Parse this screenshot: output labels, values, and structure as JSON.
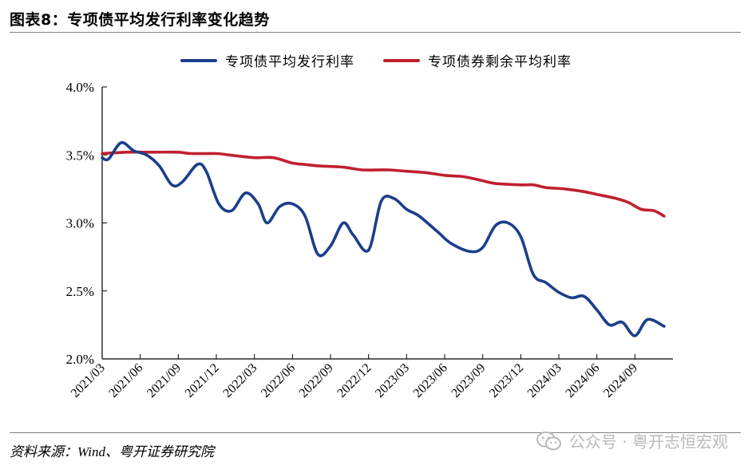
{
  "header": {
    "title": "图表8：专项债平均发行利率变化趋势"
  },
  "footer": {
    "source": "资料来源：Wind、粤开证券研究院",
    "watermark": "公众号 · 粤开志恒宏观"
  },
  "colors": {
    "issue_rate": "#1b3f8b",
    "remaining_rate": "#c0202e",
    "axis": "#000000"
  },
  "chart_data": {
    "type": "line",
    "title": "专项债平均发行利率变化趋势",
    "xlabel": "",
    "ylabel": "",
    "ylim": [
      2.0,
      4.0
    ],
    "y_ticks": [
      "2.0%",
      "2.5%",
      "3.0%",
      "3.5%",
      "4.0%"
    ],
    "y_tick_values": [
      2.0,
      2.5,
      3.0,
      3.5,
      4.0
    ],
    "x_tick_labels": [
      "2021/03",
      "2021/06",
      "2021/09",
      "2021/12",
      "2022/03",
      "2022/06",
      "2022/09",
      "2022/12",
      "2023/03",
      "2023/06",
      "2023/09",
      "2023/12",
      "2024/03",
      "2024/06",
      "2024/09"
    ],
    "x_tick_index": [
      0,
      3,
      6,
      9,
      12,
      15,
      18,
      21,
      24,
      27,
      30,
      33,
      36,
      39,
      42
    ],
    "x_max_index": 45,
    "legend_position": "top-center",
    "series": [
      {
        "name": "专项债平均发行利率",
        "color": "#1b3f8b",
        "points": [
          [
            0,
            3.48
          ],
          [
            0.5,
            3.47
          ],
          [
            1.5,
            3.59
          ],
          [
            2.5,
            3.53
          ],
          [
            3.5,
            3.5
          ],
          [
            4.5,
            3.42
          ],
          [
            5.5,
            3.28
          ],
          [
            6.3,
            3.3
          ],
          [
            7.5,
            3.43
          ],
          [
            8.2,
            3.38
          ],
          [
            9.2,
            3.14
          ],
          [
            10.2,
            3.09
          ],
          [
            11.3,
            3.22
          ],
          [
            12.3,
            3.14
          ],
          [
            13.0,
            3.0
          ],
          [
            14.0,
            3.12
          ],
          [
            15.0,
            3.14
          ],
          [
            16.0,
            3.05
          ],
          [
            17.0,
            2.77
          ],
          [
            18.0,
            2.83
          ],
          [
            19.0,
            3.0
          ],
          [
            19.8,
            2.91
          ],
          [
            21.0,
            2.8
          ],
          [
            22.0,
            3.16
          ],
          [
            23.0,
            3.18
          ],
          [
            24.0,
            3.1
          ],
          [
            25.0,
            3.05
          ],
          [
            26.5,
            2.93
          ],
          [
            27.5,
            2.85
          ],
          [
            29.0,
            2.79
          ],
          [
            30.0,
            2.82
          ],
          [
            31.0,
            2.98
          ],
          [
            32.0,
            3.0
          ],
          [
            33.0,
            2.9
          ],
          [
            34.0,
            2.62
          ],
          [
            35.0,
            2.56
          ],
          [
            36.0,
            2.49
          ],
          [
            37.0,
            2.45
          ],
          [
            38.0,
            2.46
          ],
          [
            39.0,
            2.36
          ],
          [
            40.0,
            2.25
          ],
          [
            41.0,
            2.27
          ],
          [
            42.0,
            2.17
          ],
          [
            43.0,
            2.29
          ],
          [
            44.3,
            2.24
          ]
        ]
      },
      {
        "name": "专项债券剩余平均利率",
        "color": "#c0202e",
        "points": [
          [
            0,
            3.51
          ],
          [
            2,
            3.52
          ],
          [
            4,
            3.52
          ],
          [
            6,
            3.52
          ],
          [
            7,
            3.51
          ],
          [
            9,
            3.51
          ],
          [
            10,
            3.5
          ],
          [
            12,
            3.48
          ],
          [
            13.5,
            3.48
          ],
          [
            15,
            3.44
          ],
          [
            16,
            3.43
          ],
          [
            17,
            3.42
          ],
          [
            19,
            3.41
          ],
          [
            20.5,
            3.39
          ],
          [
            22.5,
            3.39
          ],
          [
            24,
            3.38
          ],
          [
            25.5,
            3.37
          ],
          [
            27,
            3.35
          ],
          [
            28.5,
            3.34
          ],
          [
            30,
            3.31
          ],
          [
            31,
            3.29
          ],
          [
            33,
            3.28
          ],
          [
            34,
            3.28
          ],
          [
            35,
            3.26
          ],
          [
            36.5,
            3.25
          ],
          [
            38,
            3.23
          ],
          [
            39,
            3.21
          ],
          [
            40.5,
            3.18
          ],
          [
            41.5,
            3.15
          ],
          [
            42.5,
            3.1
          ],
          [
            43.5,
            3.09
          ],
          [
            44.3,
            3.05
          ]
        ]
      }
    ]
  }
}
